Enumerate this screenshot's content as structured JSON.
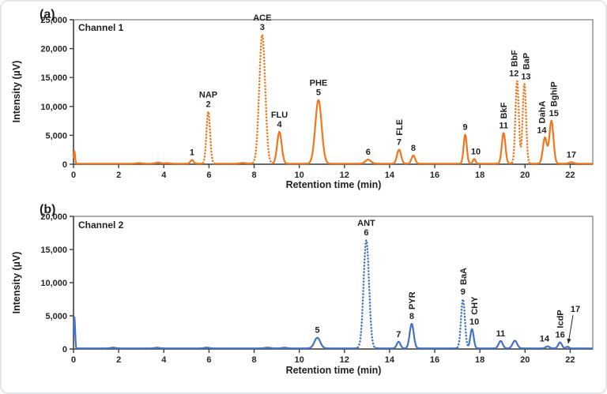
{
  "chart_data": [
    {
      "type": "line",
      "panel_tag": "(a)",
      "channel_label": "Channel 1",
      "line_color": "#F1761B",
      "xlabel": "Retention time (min)",
      "ylabel": "Intensity (µV)",
      "xlim": [
        0,
        23
      ],
      "ylim": [
        0,
        25000
      ],
      "xticks": [
        0,
        2,
        4,
        6,
        8,
        10,
        12,
        14,
        16,
        18,
        20,
        22
      ],
      "yticks": [
        0,
        5000,
        10000,
        15000,
        20000,
        25000
      ],
      "ytick_labels": [
        "0",
        "5,000",
        "10,000",
        "15,000",
        "20,000",
        "25,000"
      ],
      "baseline_uV": 100,
      "peaks": [
        {
          "num": "",
          "name": "",
          "rotated": false,
          "t_min": 0.04,
          "h_uV": 2200,
          "sigma": 0.03,
          "style": "solid"
        },
        {
          "num": "1",
          "name": "",
          "rotated": false,
          "t_min": 5.25,
          "h_uV": 650,
          "sigma": 0.07,
          "style": "solid"
        },
        {
          "num": "2",
          "name": "NAP",
          "rotated": false,
          "t_min": 5.97,
          "h_uV": 9000,
          "sigma": 0.08,
          "style": "dotted"
        },
        {
          "num": "3",
          "name": "ACE",
          "rotated": false,
          "t_min": 8.36,
          "h_uV": 22300,
          "sigma": 0.13,
          "style": "dotted"
        },
        {
          "num": "4",
          "name": "FLU",
          "rotated": false,
          "t_min": 9.12,
          "h_uV": 5500,
          "sigma": 0.1,
          "style": "solid"
        },
        {
          "num": "5",
          "name": "PHE",
          "rotated": false,
          "t_min": 10.85,
          "h_uV": 11000,
          "sigma": 0.14,
          "style": "solid"
        },
        {
          "num": "6",
          "name": "",
          "rotated": false,
          "t_min": 13.05,
          "h_uV": 700,
          "sigma": 0.12,
          "style": "solid"
        },
        {
          "num": "7",
          "name": "FLE",
          "rotated": true,
          "t_min": 14.42,
          "h_uV": 2400,
          "sigma": 0.09,
          "style": "solid"
        },
        {
          "num": "8",
          "name": "",
          "rotated": false,
          "t_min": 15.05,
          "h_uV": 1400,
          "sigma": 0.08,
          "style": "solid"
        },
        {
          "num": "9",
          "name": "",
          "rotated": false,
          "t_min": 17.35,
          "h_uV": 5000,
          "sigma": 0.07,
          "style": "solid"
        },
        {
          "num": "10",
          "name": "",
          "rotated": false,
          "t_min": 17.75,
          "h_uV": 800,
          "sigma": 0.06,
          "style": "solid",
          "dx": 2
        },
        {
          "num": "11",
          "name": "BkF",
          "rotated": true,
          "t_min": 19.05,
          "h_uV": 5300,
          "sigma": 0.08,
          "style": "solid"
        },
        {
          "num": "12",
          "name": "BbF",
          "rotated": true,
          "t_min": 19.65,
          "h_uV": 14300,
          "sigma": 0.075,
          "style": "dotted",
          "dx": -4
        },
        {
          "num": "13",
          "name": "BaP",
          "rotated": true,
          "t_min": 19.97,
          "h_uV": 13800,
          "sigma": 0.075,
          "style": "dotted",
          "dx": 2
        },
        {
          "num": "14",
          "name": "DahA",
          "rotated": true,
          "t_min": 20.88,
          "h_uV": 4500,
          "sigma": 0.09,
          "style": "solid",
          "dx": -4
        },
        {
          "num": "15",
          "name": "BghiP",
          "rotated": true,
          "t_min": 21.17,
          "h_uV": 7400,
          "sigma": 0.09,
          "style": "solid",
          "dx": 3
        },
        {
          "num": "17",
          "name": "",
          "rotated": false,
          "t_min": 22.05,
          "h_uV": 250,
          "sigma": 0.1,
          "style": "solid"
        }
      ],
      "baseline_bumps": [
        {
          "t_min": 2.9,
          "h_uV": 110,
          "sigma": 0.12
        },
        {
          "t_min": 3.75,
          "h_uV": 190,
          "sigma": 0.12
        },
        {
          "t_min": 4.15,
          "h_uV": 90,
          "sigma": 0.1
        },
        {
          "t_min": 7.5,
          "h_uV": 130,
          "sigma": 0.12
        }
      ]
    },
    {
      "type": "line",
      "panel_tag": "(b)",
      "channel_label": "Channel 2",
      "line_color": "#4472C4",
      "xlabel": "Retention time (min)",
      "ylabel": "Intensity (µV)",
      "xlim": [
        0,
        23
      ],
      "ylim": [
        0,
        20000
      ],
      "xticks": [
        0,
        2,
        4,
        6,
        8,
        10,
        12,
        14,
        16,
        18,
        20,
        22
      ],
      "yticks": [
        0,
        5000,
        10000,
        15000,
        20000
      ],
      "ytick_labels": [
        "0",
        "5,000",
        "10,000",
        "15,000",
        "20,000"
      ],
      "baseline_uV": 100,
      "peaks": [
        {
          "num": "",
          "name": "",
          "rotated": false,
          "t_min": 0.04,
          "h_uV": 4700,
          "sigma": 0.03,
          "style": "solid"
        },
        {
          "num": "5",
          "name": "",
          "rotated": false,
          "t_min": 10.8,
          "h_uV": 1600,
          "sigma": 0.13,
          "style": "solid"
        },
        {
          "num": "6",
          "name": "ANT",
          "rotated": false,
          "t_min": 12.97,
          "h_uV": 16300,
          "sigma": 0.12,
          "style": "dotted"
        },
        {
          "num": "7",
          "name": "",
          "rotated": false,
          "t_min": 14.4,
          "h_uV": 1000,
          "sigma": 0.08,
          "style": "solid"
        },
        {
          "num": "8",
          "name": "PYR",
          "rotated": true,
          "t_min": 14.98,
          "h_uV": 3700,
          "sigma": 0.09,
          "style": "solid"
        },
        {
          "num": "9",
          "name": "BaA",
          "rotated": true,
          "t_min": 17.25,
          "h_uV": 7400,
          "sigma": 0.085,
          "style": "dotted"
        },
        {
          "num": "10",
          "name": "CHY",
          "rotated": true,
          "t_min": 17.65,
          "h_uV": 2900,
          "sigma": 0.075,
          "style": "solid",
          "dx": 3
        },
        {
          "num": "11",
          "name": "",
          "rotated": false,
          "t_min": 18.92,
          "h_uV": 1100,
          "sigma": 0.09,
          "style": "solid"
        },
        {
          "num": "",
          "name": "",
          "rotated": false,
          "t_min": 19.55,
          "h_uV": 1150,
          "sigma": 0.1,
          "style": "solid"
        },
        {
          "num": "14",
          "name": "",
          "rotated": false,
          "t_min": 21.0,
          "h_uV": 300,
          "sigma": 0.08,
          "style": "solid",
          "dx": -4
        },
        {
          "num": "16",
          "name": "IcdP",
          "rotated": true,
          "t_min": 21.55,
          "h_uV": 900,
          "sigma": 0.08,
          "style": "solid"
        },
        {
          "num": "17",
          "name": "",
          "rotated": false,
          "t_min": 21.88,
          "h_uV": 250,
          "sigma": 0.06,
          "style": "solid",
          "arrow": true
        }
      ],
      "baseline_bumps": [
        {
          "t_min": 1.75,
          "h_uV": 110,
          "sigma": 0.1
        },
        {
          "t_min": 3.7,
          "h_uV": 100,
          "sigma": 0.1
        },
        {
          "t_min": 5.9,
          "h_uV": 120,
          "sigma": 0.1
        },
        {
          "t_min": 8.6,
          "h_uV": 110,
          "sigma": 0.12
        },
        {
          "t_min": 9.35,
          "h_uV": 100,
          "sigma": 0.1
        }
      ]
    }
  ]
}
